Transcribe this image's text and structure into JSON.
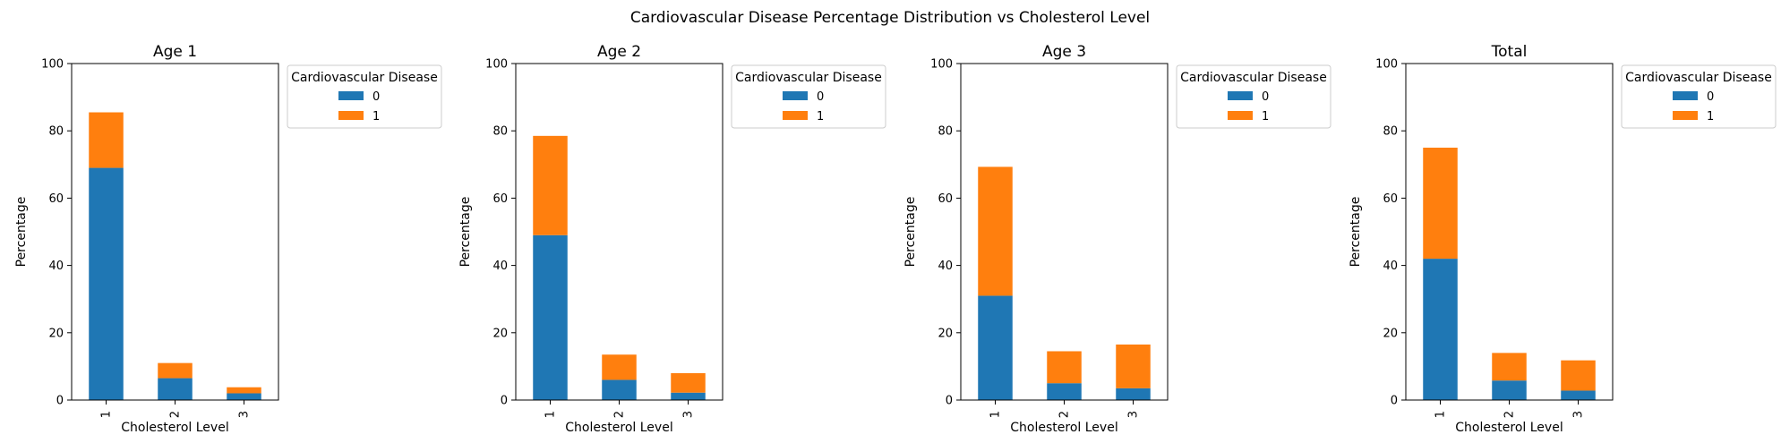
{
  "suptitle": "Cardiovascular Disease Percentage Distribution vs Cholesterol Level",
  "colors": {
    "0": "#1f77b4",
    "1": "#ff7f0e"
  },
  "chart_data": [
    {
      "type": "bar",
      "stacked": true,
      "title": "Age 1",
      "xlabel": "Cholesterol Level",
      "ylabel": "Percentage",
      "ylim": [
        0,
        100
      ],
      "yticks": [
        0,
        20,
        40,
        60,
        80,
        100
      ],
      "categories": [
        "1",
        "2",
        "3"
      ],
      "legend_title": "Cardiovascular Disease",
      "legend_position": "outside upper right",
      "series": [
        {
          "name": "0",
          "values": [
            69.0,
            6.5,
            2.0
          ]
        },
        {
          "name": "1",
          "values": [
            16.5,
            4.5,
            1.8
          ]
        }
      ]
    },
    {
      "type": "bar",
      "stacked": true,
      "title": "Age 2",
      "xlabel": "Cholesterol Level",
      "ylabel": "Percentage",
      "ylim": [
        0,
        100
      ],
      "yticks": [
        0,
        20,
        40,
        60,
        80,
        100
      ],
      "categories": [
        "1",
        "2",
        "3"
      ],
      "legend_title": "Cardiovascular Disease",
      "legend_position": "outside upper right",
      "series": [
        {
          "name": "0",
          "values": [
            49.0,
            6.0,
            2.2
          ]
        },
        {
          "name": "1",
          "values": [
            29.5,
            7.5,
            5.8
          ]
        }
      ]
    },
    {
      "type": "bar",
      "stacked": true,
      "title": "Age 3",
      "xlabel": "Cholesterol Level",
      "ylabel": "Percentage",
      "ylim": [
        0,
        100
      ],
      "yticks": [
        0,
        20,
        40,
        60,
        80,
        100
      ],
      "categories": [
        "1",
        "2",
        "3"
      ],
      "legend_title": "Cardiovascular Disease",
      "legend_position": "outside upper right",
      "series": [
        {
          "name": "0",
          "values": [
            31.0,
            5.0,
            3.5
          ]
        },
        {
          "name": "1",
          "values": [
            38.3,
            9.5,
            13.0
          ]
        }
      ]
    },
    {
      "type": "bar",
      "stacked": true,
      "title": "Total",
      "xlabel": "Cholesterol Level",
      "ylabel": "Percentage",
      "ylim": [
        0,
        100
      ],
      "yticks": [
        0,
        20,
        40,
        60,
        80,
        100
      ],
      "categories": [
        "1",
        "2",
        "3"
      ],
      "legend_title": "Cardiovascular Disease",
      "legend_position": "outside upper right",
      "series": [
        {
          "name": "0",
          "values": [
            42.0,
            5.8,
            2.8
          ]
        },
        {
          "name": "1",
          "values": [
            33.0,
            8.2,
            9.0
          ]
        }
      ]
    }
  ]
}
